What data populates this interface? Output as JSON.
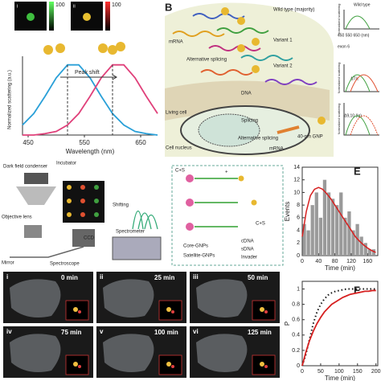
{
  "panel_labels": [
    "B",
    "E",
    "F"
  ],
  "panel_a": {
    "type": "line",
    "xlabel": "Wavelength (nm)",
    "ylabel": "Normalized scattering (a.u.)",
    "annotation": "Peak shift",
    "inset_labels": [
      "i",
      "ii"
    ],
    "colorbar_max": 100,
    "x": [
      440,
      460,
      480,
      500,
      520,
      540,
      560,
      580,
      600,
      620,
      640,
      660,
      680
    ],
    "series": [
      {
        "color": "#2aa0d8",
        "values": [
          0.14,
          0.3,
          0.54,
          0.8,
          0.98,
          0.98,
          0.8,
          0.54,
          0.3,
          0.14,
          0.05,
          0.02,
          0.0
        ]
      },
      {
        "color": "#e0407a",
        "values": [
          0.0,
          0.0,
          0.02,
          0.05,
          0.14,
          0.3,
          0.54,
          0.8,
          0.98,
          0.98,
          0.8,
          0.54,
          0.3
        ]
      }
    ],
    "xlim": [
      440,
      680
    ],
    "ylim": [
      0,
      1.1
    ],
    "xticks": [
      450,
      550,
      650
    ]
  },
  "panel_b": {
    "labels": [
      "Wild type (majority)",
      "Variant 1",
      "Alternative splicing",
      "Variant 2",
      "mRNA",
      "DNA",
      "Living cell",
      "Cell nucleus",
      "Splicing",
      "Alternative splicing",
      "40-nm GNP",
      "mRNA"
    ],
    "side_labels": [
      "Wild type",
      "450  550  650 (nm)",
      "exon 6",
      "ΔTIc",
      "Δ9,10 (Ig)"
    ],
    "side_ylabels": [
      "Normalized scattering",
      "Normalized scattering",
      "Normalized scattering"
    ]
  },
  "panel_c": {
    "labels": [
      "Dark field condenser",
      "Incubator",
      "Shifting",
      "CCD",
      "Objective lens",
      "Mirror",
      "Spectroscope",
      "Spectrometer"
    ]
  },
  "panel_d": {
    "labels": [
      "C+S",
      "+",
      "C+S",
      "Core-GNPs",
      "Satellite-GNPs",
      "cDNA",
      "sDNA",
      "Invader"
    ]
  },
  "panel_e": {
    "type": "histogram",
    "xlabel": "Time (min)",
    "ylabel": "Events",
    "bins": [
      0,
      10,
      20,
      30,
      40,
      50,
      60,
      70,
      80,
      90,
      100,
      110,
      120,
      130,
      140,
      150,
      160,
      170,
      180
    ],
    "counts": [
      5,
      4,
      8,
      10,
      6,
      12,
      10,
      9,
      8,
      10,
      6,
      7,
      4,
      5,
      3,
      2,
      1,
      1
    ],
    "color": "#9a9a9a",
    "fit": {
      "color": "#d62020",
      "x": [
        0,
        10,
        20,
        30,
        40,
        50,
        60,
        70,
        80,
        90,
        100,
        110,
        120,
        130,
        140,
        150,
        160,
        170,
        180
      ],
      "values": [
        3,
        7,
        9.5,
        10.5,
        10.8,
        10.5,
        9.8,
        9,
        8,
        7,
        6,
        5,
        4,
        3,
        2.3,
        1.7,
        1.2,
        0.8,
        0.5
      ]
    },
    "xlim": [
      0,
      185
    ],
    "ylim": [
      0,
      14
    ],
    "xticks": [
      0,
      40,
      80,
      120,
      160
    ],
    "yticks": [
      0,
      2,
      4,
      6,
      8,
      10,
      12,
      14
    ]
  },
  "panel_f": {
    "type": "line",
    "xlabel": "Time (min)",
    "ylabel": "P",
    "x": [
      0,
      10,
      20,
      30,
      40,
      50,
      60,
      70,
      80,
      90,
      100,
      110,
      120,
      130,
      140,
      150,
      160,
      170,
      180,
      190,
      200
    ],
    "series": [
      {
        "color": "#111111",
        "style": "dotted",
        "values": [
          0,
          0.15,
          0.35,
          0.55,
          0.7,
          0.8,
          0.87,
          0.92,
          0.95,
          0.97,
          0.98,
          0.99,
          1,
          1,
          1,
          1,
          1,
          1,
          1,
          1,
          1
        ]
      },
      {
        "color": "#d62020",
        "style": "solid",
        "values": [
          0,
          0.18,
          0.33,
          0.45,
          0.55,
          0.63,
          0.7,
          0.75,
          0.8,
          0.83,
          0.86,
          0.89,
          0.91,
          0.93,
          0.94,
          0.95,
          0.96,
          0.97,
          0.97,
          0.98,
          0.98
        ]
      }
    ],
    "xlim": [
      0,
      205
    ],
    "ylim": [
      0,
      1.1
    ],
    "xticks": [
      0,
      50,
      100,
      150,
      200
    ],
    "yticks": [
      0,
      0.2,
      0.4,
      0.6,
      0.8,
      1.0
    ]
  },
  "time_lapse": [
    {
      "label": "i",
      "time": "0 min"
    },
    {
      "label": "ii",
      "time": "25 min"
    },
    {
      "label": "iii",
      "time": "50 min"
    },
    {
      "label": "iv",
      "time": "75 min"
    },
    {
      "label": "v",
      "time": "100 min"
    },
    {
      "label": "vi",
      "time": "125 min"
    }
  ]
}
